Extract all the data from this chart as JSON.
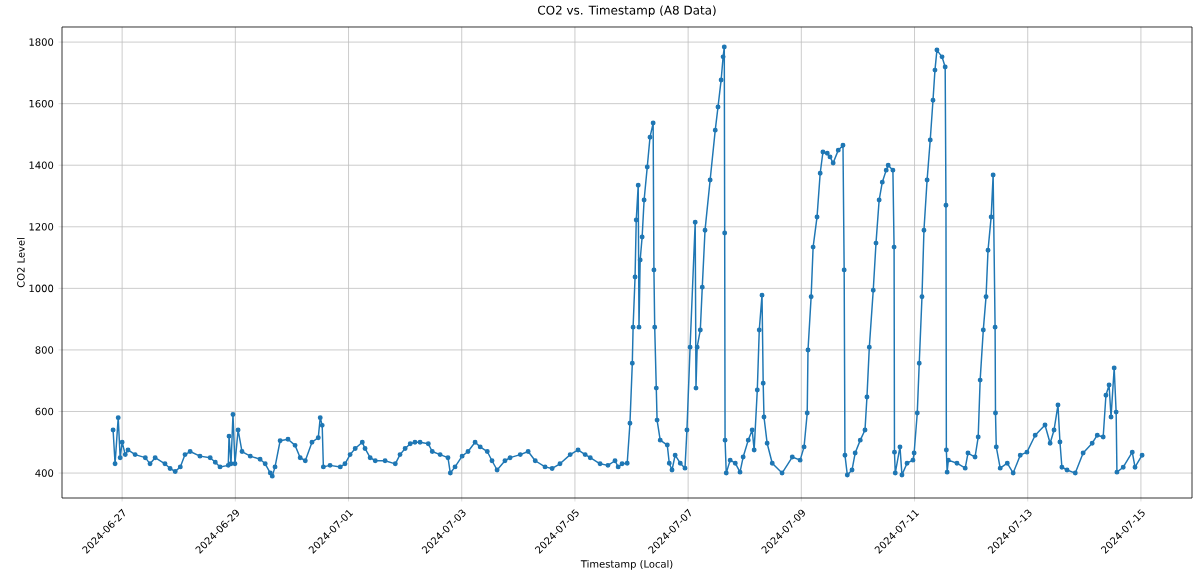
{
  "chart_data": {
    "type": "line",
    "title": "CO2 vs. Timestamp (A8 Data)",
    "xlabel": "Timestamp (Local)",
    "ylabel": "CO2 Level",
    "xlim": [
      "2024-06-25T22:30",
      "2024-07-15T21:40"
    ],
    "ylim": [
      319,
      1849
    ],
    "xticks": [
      "2024-06-27",
      "2024-06-29",
      "2024-07-01",
      "2024-07-03",
      "2024-07-05",
      "2024-07-07",
      "2024-07-09",
      "2024-07-11",
      "2024-07-13",
      "2024-07-15"
    ],
    "yticks": [
      400,
      600,
      800,
      1000,
      1200,
      1400,
      1600,
      1800
    ],
    "grid": true,
    "marker": "circle",
    "line_style": "solid",
    "series": [
      {
        "color": "#1f77b4",
        "x": [
          "2024-06-26T20:10",
          "2024-06-26T21:00",
          "2024-06-26T22:20",
          "2024-06-26T23:10",
          "2024-06-27T00:00",
          "2024-06-27T01:20",
          "2024-06-27T02:30",
          "2024-06-27T05:30",
          "2024-06-27T09:50",
          "2024-06-27T11:50",
          "2024-06-27T14:00",
          "2024-06-27T18:10",
          "2024-06-27T20:20",
          "2024-06-27T22:30",
          "2024-06-28T00:40",
          "2024-06-28T02:40",
          "2024-06-28T04:50",
          "2024-06-28T09:00",
          "2024-06-28T13:20",
          "2024-06-28T15:30",
          "2024-06-28T17:30",
          "2024-06-28T21:00",
          "2024-06-28T21:20",
          "2024-06-28T22:10",
          "2024-06-28T23:00",
          "2024-06-28T23:50",
          "2024-06-29T01:10",
          "2024-06-29T02:50",
          "2024-06-29T06:20",
          "2024-06-29T10:30",
          "2024-06-29T12:40",
          "2024-06-29T14:50",
          "2024-06-29T15:40",
          "2024-06-29T16:50",
          "2024-06-29T19:00",
          "2024-06-29T22:20",
          "2024-06-30T01:20",
          "2024-06-30T03:30",
          "2024-06-30T05:40",
          "2024-06-30T08:30",
          "2024-06-30T11:10",
          "2024-06-30T12:00",
          "2024-06-30T12:50",
          "2024-06-30T13:20",
          "2024-06-30T16:10",
          "2024-06-30T20:30",
          "2024-06-30T22:30",
          "2024-07-01T00:40",
          "2024-07-01T02:50",
          "2024-07-01T05:50",
          "2024-07-01T07:00",
          "2024-07-01T09:10",
          "2024-07-01T11:20",
          "2024-07-01T15:30",
          "2024-07-01T19:50",
          "2024-07-01T21:50",
          "2024-07-02T00:00",
          "2024-07-02T02:10",
          "2024-07-02T04:10",
          "2024-07-02T06:20",
          "2024-07-02T09:50",
          "2024-07-02T11:30",
          "2024-07-02T14:50",
          "2024-07-02T18:10",
          "2024-07-02T19:10",
          "2024-07-02T21:10",
          "2024-07-03T00:10",
          "2024-07-03T02:40",
          "2024-07-03T05:40",
          "2024-07-03T07:50",
          "2024-07-03T10:50",
          "2024-07-03T12:50",
          "2024-07-03T15:00",
          "2024-07-03T18:20",
          "2024-07-03T20:30",
          "2024-07-04T00:50",
          "2024-07-04T04:10",
          "2024-07-04T07:10",
          "2024-07-04T11:20",
          "2024-07-04T14:20",
          "2024-07-04T17:40",
          "2024-07-04T22:00",
          "2024-07-05T01:20",
          "2024-07-05T04:20",
          "2024-07-05T06:30",
          "2024-07-05T10:40",
          "2024-07-05T14:00",
          "2024-07-05T17:00",
          "2024-07-05T18:20",
          "2024-07-05T20:00",
          "2024-07-05T22:10",
          "2024-07-05T23:20",
          "2024-07-06T00:20",
          "2024-07-06T00:40",
          "2024-07-06T01:30",
          "2024-07-06T02:00",
          "2024-07-06T02:50",
          "2024-07-06T03:10",
          "2024-07-06T03:40",
          "2024-07-06T04:30",
          "2024-07-06T05:20",
          "2024-07-06T06:40",
          "2024-07-06T07:50",
          "2024-07-06T09:10",
          "2024-07-06T09:30",
          "2024-07-06T09:50",
          "2024-07-06T10:30",
          "2024-07-06T10:50",
          "2024-07-06T12:10",
          "2024-07-06T15:10",
          "2024-07-06T16:00",
          "2024-07-06T17:10",
          "2024-07-06T18:30",
          "2024-07-06T20:40",
          "2024-07-06T22:40",
          "2024-07-06T23:30",
          "2024-07-07T00:50",
          "2024-07-07T03:00",
          "2024-07-07T03:20",
          "2024-07-07T03:50",
          "2024-07-07T05:10",
          "2024-07-07T06:00",
          "2024-07-07T07:10",
          "2024-07-07T09:20",
          "2024-07-07T11:30",
          "2024-07-07T12:40",
          "2024-07-07T14:00",
          "2024-07-07T14:50",
          "2024-07-07T15:20",
          "2024-07-07T15:30",
          "2024-07-07T15:40",
          "2024-07-07T16:10",
          "2024-07-07T17:50",
          "2024-07-07T20:00",
          "2024-07-07T22:00",
          "2024-07-07T23:20",
          "2024-07-08T01:30",
          "2024-07-08T03:10",
          "2024-07-08T04:00",
          "2024-07-08T05:20",
          "2024-07-08T06:10",
          "2024-07-08T07:20",
          "2024-07-08T07:50",
          "2024-07-08T08:10",
          "2024-07-08T09:30",
          "2024-07-08T11:40",
          "2024-07-08T15:50",
          "2024-07-08T20:10",
          "2024-07-08T23:30",
          "2024-07-09T01:10",
          "2024-07-09T02:30",
          "2024-07-09T02:50",
          "2024-07-09T04:10",
          "2024-07-09T05:00",
          "2024-07-09T06:40",
          "2024-07-09T08:00",
          "2024-07-09T09:10",
          "2024-07-09T11:00",
          "2024-07-09T12:10",
          "2024-07-09T13:30",
          "2024-07-09T15:40",
          "2024-07-09T17:40",
          "2024-07-09T18:10",
          "2024-07-09T18:30",
          "2024-07-09T19:30",
          "2024-07-09T21:30",
          "2024-07-09T22:50",
          "2024-07-10T01:00",
          "2024-07-10T03:00",
          "2024-07-10T03:50",
          "2024-07-10T04:50",
          "2024-07-10T06:30",
          "2024-07-10T07:40",
          "2024-07-10T09:00",
          "2024-07-10T10:20",
          "2024-07-10T12:00",
          "2024-07-10T12:50",
          "2024-07-10T14:50",
          "2024-07-10T15:20",
          "2024-07-10T15:30",
          "2024-07-10T15:50",
          "2024-07-10T17:50",
          "2024-07-10T18:40",
          "2024-07-10T20:50",
          "2024-07-10T23:20",
          "2024-07-10T23:50",
          "2024-07-11T01:10",
          "2024-07-11T02:00",
          "2024-07-11T03:10",
          "2024-07-11T04:00",
          "2024-07-11T05:20",
          "2024-07-11T06:40",
          "2024-07-11T07:50",
          "2024-07-11T08:40",
          "2024-07-11T09:30",
          "2024-07-11T11:40",
          "2024-07-11T13:00",
          "2024-07-11T13:20",
          "2024-07-11T13:30",
          "2024-07-11T13:50",
          "2024-07-11T14:20",
          "2024-07-11T18:00",
          "2024-07-11T21:30",
          "2024-07-11T22:40",
          "2024-07-12T01:40",
          "2024-07-12T03:00",
          "2024-07-12T03:50",
          "2024-07-12T05:10",
          "2024-07-12T06:20",
          "2024-07-12T07:10",
          "2024-07-12T08:30",
          "2024-07-12T09:20",
          "2024-07-12T10:10",
          "2024-07-12T10:20",
          "2024-07-12T10:40",
          "2024-07-12T12:20",
          "2024-07-12T15:20",
          "2024-07-12T17:50",
          "2024-07-12T20:50",
          "2024-07-12T23:40",
          "2024-07-13T03:10",
          "2024-07-13T07:20",
          "2024-07-13T09:30",
          "2024-07-13T11:10",
          "2024-07-13T12:50",
          "2024-07-13T13:40",
          "2024-07-13T14:30",
          "2024-07-13T16:40",
          "2024-07-13T20:10",
          "2024-07-13T23:30",
          "2024-07-14T03:20",
          "2024-07-14T05:30",
          "2024-07-14T08:00",
          "2024-07-14T09:10",
          "2024-07-14T10:30",
          "2024-07-14T11:20",
          "2024-07-14T12:40",
          "2024-07-14T13:30",
          "2024-07-14T13:50",
          "2024-07-14T16:30",
          "2024-07-14T20:20",
          "2024-07-14T21:30",
          "2024-07-15T00:30"
        ],
        "values": [
          540,
          430,
          580,
          450,
          500,
          460,
          475,
          460,
          450,
          430,
          450,
          430,
          415,
          405,
          420,
          460,
          470,
          455,
          450,
          435,
          420,
          425,
          520,
          430,
          590,
          430,
          540,
          470,
          455,
          445,
          430,
          400,
          390,
          420,
          505,
          510,
          490,
          450,
          440,
          500,
          515,
          580,
          555,
          420,
          425,
          420,
          430,
          460,
          480,
          500,
          480,
          450,
          440,
          440,
          430,
          460,
          480,
          495,
          500,
          500,
          495,
          470,
          460,
          450,
          400,
          420,
          455,
          470,
          500,
          485,
          470,
          440,
          410,
          440,
          450,
          460,
          470,
          440,
          420,
          415,
          430,
          460,
          475,
          460,
          450,
          430,
          425,
          440,
          420,
          430,
          432,
          562,
          757,
          874,
          1037,
          1222,
          1335,
          874,
          1092,
          1167,
          1287,
          1394,
          1491,
          1537,
          1060,
          874,
          676,
          572,
          507,
          491,
          432,
          410,
          458,
          432,
          416,
          540,
          809,
          1215,
          676,
          809,
          865,
          1004,
          1189,
          1352,
          1514,
          1589,
          1677,
          1752,
          1784,
          1180,
          507,
          400,
          442,
          432,
          403,
          452,
          507,
          540,
          475,
          670,
          865,
          978,
          692,
          582,
          497,
          432,
          400,
          452,
          442,
          485,
          595,
          800,
          973,
          1134,
          1232,
          1374,
          1443,
          1439,
          1427,
          1407,
          1449,
          1465,
          1060,
          458,
          394,
          410,
          465,
          507,
          540,
          647,
          809,
          994,
          1147,
          1287,
          1345,
          1384,
          1400,
          1384,
          1134,
          468,
          400,
          485,
          394,
          432,
          442,
          465,
          595,
          757,
          973,
          1189,
          1352,
          1482,
          1611,
          1709,
          1774,
          1752,
          1719,
          1270,
          475,
          403,
          442,
          432,
          416,
          465,
          452,
          517,
          702,
          865,
          973,
          1124,
          1232,
          1368,
          874,
          595,
          485,
          416,
          432,
          400,
          458,
          468,
          523,
          556,
          497,
          540,
          621,
          501,
          419,
          410,
          400,
          465,
          497,
          523,
          517,
          653,
          686,
          582,
          741,
          598,
          403,
          419,
          468,
          419,
          458
        ]
      }
    ]
  }
}
